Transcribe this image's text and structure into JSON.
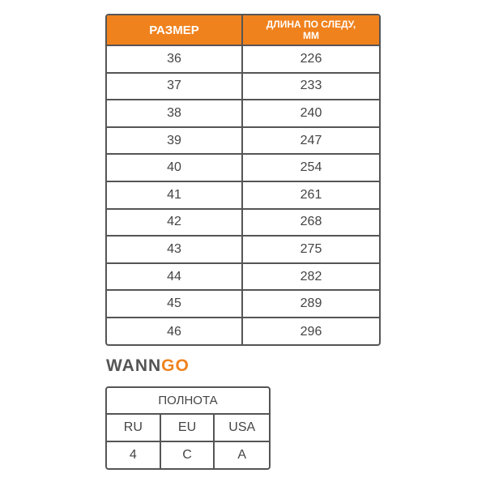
{
  "size_table": {
    "headers": [
      "РАЗМЕР",
      "ДЛИНА ПО СЛЕДУ, ММ"
    ],
    "rows": [
      [
        36,
        226
      ],
      [
        37,
        233
      ],
      [
        38,
        240
      ],
      [
        39,
        247
      ],
      [
        40,
        254
      ],
      [
        41,
        261
      ],
      [
        42,
        268
      ],
      [
        43,
        275
      ],
      [
        44,
        282
      ],
      [
        45,
        289
      ],
      [
        46,
        296
      ]
    ]
  },
  "logo": {
    "part1": "WANN",
    "part2": "GO"
  },
  "width_table": {
    "title": "ПОЛНОТА",
    "headers": [
      "RU",
      "EU",
      "USA"
    ],
    "values": [
      "4",
      "C",
      "A"
    ]
  }
}
